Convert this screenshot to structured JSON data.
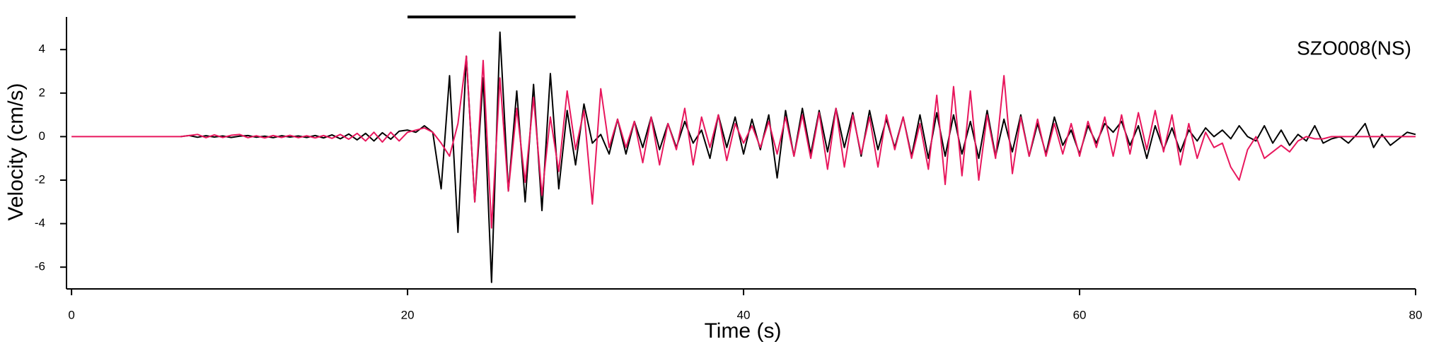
{
  "chart_data": {
    "type": "line",
    "xlabel": "Time (s)",
    "ylabel": "Velocity (cm/s)",
    "annotation": "SZO008(NS)",
    "span": [
      20,
      30
    ],
    "xlim": [
      -0.3,
      80
    ],
    "ylim": [
      -7,
      5.5
    ],
    "xticks": [
      0,
      20,
      40,
      60,
      80
    ],
    "yticks": [
      -6,
      -4,
      -2,
      0,
      2,
      4
    ],
    "x": [
      0,
      0.5,
      1,
      1.5,
      2,
      2.5,
      3,
      3.5,
      4,
      4.5,
      5,
      5.5,
      6,
      6.5,
      7,
      7.5,
      8,
      8.5,
      9,
      9.5,
      10,
      10.5,
      11,
      11.5,
      12,
      12.5,
      13,
      13.5,
      14,
      14.5,
      15,
      15.5,
      16,
      16.5,
      17,
      17.5,
      18,
      18.5,
      19,
      19.5,
      20,
      20.5,
      21,
      21.5,
      22,
      22.5,
      23,
      23.5,
      24,
      24.5,
      25,
      25.5,
      26,
      26.5,
      27,
      27.5,
      28,
      28.5,
      29,
      29.5,
      30,
      30.5,
      31,
      31.5,
      32,
      32.5,
      33,
      33.5,
      34,
      34.5,
      35,
      35.5,
      36,
      36.5,
      37,
      37.5,
      38,
      38.5,
      39,
      39.5,
      40,
      40.5,
      41,
      41.5,
      42,
      42.5,
      43,
      43.5,
      44,
      44.5,
      45,
      45.5,
      46,
      46.5,
      47,
      47.5,
      48,
      48.5,
      49,
      49.5,
      50,
      50.5,
      51,
      51.5,
      52,
      52.5,
      53,
      53.5,
      54,
      54.5,
      55,
      55.5,
      56,
      56.5,
      57,
      57.5,
      58,
      58.5,
      59,
      59.5,
      60,
      60.5,
      61,
      61.5,
      62,
      62.5,
      63,
      63.5,
      64,
      64.5,
      65,
      65.5,
      66,
      66.5,
      67,
      67.5,
      68,
      68.5,
      69,
      69.5,
      70,
      70.5,
      71,
      71.5,
      72,
      72.5,
      73,
      73.5,
      74,
      74.5,
      75,
      75.5,
      76,
      76.5,
      77,
      77.5,
      78,
      78.5,
      79,
      79.5,
      80
    ],
    "series": [
      {
        "color": "#000000",
        "values": [
          null,
          null,
          null,
          null,
          null,
          null,
          null,
          null,
          null,
          null,
          null,
          null,
          null,
          0,
          0.05,
          -0.03,
          0.04,
          -0.02,
          0.03,
          -0.04,
          0.02,
          0.05,
          -0.03,
          0.02,
          -0.05,
          0.04,
          -0.02,
          0.03,
          -0.04,
          0.05,
          -0.06,
          0.08,
          -0.1,
          0.12,
          -0.15,
          0.15,
          -0.2,
          0.18,
          -0.12,
          0.25,
          0.3,
          0.2,
          0.5,
          0.2,
          -2.4,
          2.8,
          -4.4,
          3.7,
          -3.0,
          2.7,
          -6.7,
          4.8,
          -2.5,
          2.1,
          -3.0,
          2.4,
          -3.4,
          2.9,
          -2.4,
          1.2,
          -1.3,
          1.5,
          -0.3,
          0.1,
          -0.8,
          0.8,
          -0.8,
          0.7,
          -0.5,
          0.9,
          -0.6,
          0.6,
          -0.5,
          0.7,
          -0.3,
          0.3,
          -1.0,
          1.0,
          -0.5,
          0.9,
          -0.8,
          0.8,
          -0.6,
          1.0,
          -1.9,
          1.2,
          -0.9,
          1.3,
          -0.8,
          1.2,
          -0.7,
          1.3,
          -0.5,
          1.1,
          -0.9,
          1.2,
          -0.6,
          0.8,
          -0.5,
          0.9,
          -0.9,
          1.0,
          -1.0,
          1.1,
          -0.9,
          1.0,
          -0.8,
          0.7,
          -1.0,
          1.2,
          -0.9,
          0.8,
          -0.7,
          1.0,
          -0.9,
          0.6,
          -0.8,
          0.9,
          -0.4,
          0.3,
          -0.8,
          0.5,
          -0.3,
          0.6,
          0.2,
          0.7,
          -0.4,
          0.5,
          -1.0,
          0.5,
          -0.6,
          0.4,
          -0.7,
          0.3,
          -0.2,
          0.4,
          0.0,
          0.3,
          -0.1,
          0.5,
          0.0,
          -0.2,
          0.5,
          -0.3,
          0.3,
          -0.4,
          0.1,
          -0.2,
          0.5,
          -0.3,
          -0.1,
          0.0,
          -0.3,
          0.1,
          0.6,
          -0.5,
          0.1,
          -0.4,
          -0.1,
          0.2,
          0.1
        ]
      },
      {
        "color": "#e8175d",
        "values": [
          0,
          0,
          0,
          0,
          0,
          0,
          0,
          0,
          0,
          0,
          0,
          0,
          0,
          0,
          0.05,
          0.1,
          -0.05,
          0.08,
          -0.04,
          0.06,
          0.1,
          -0.05,
          0.04,
          -0.06,
          0.05,
          -0.04,
          0.06,
          -0.05,
          0.04,
          -0.06,
          0.05,
          -0.08,
          0.1,
          -0.12,
          0.15,
          -0.2,
          0.2,
          -0.25,
          0.2,
          -0.2,
          0.2,
          0.3,
          0.4,
          0.2,
          -0.3,
          -0.9,
          0.6,
          3.7,
          -3.0,
          3.5,
          -4.2,
          2.7,
          -2.5,
          1.3,
          -2.1,
          1.8,
          -2.7,
          0.9,
          -1.6,
          2.1,
          -0.6,
          1.2,
          -3.1,
          2.2,
          -0.5,
          0.8,
          -0.5,
          0.7,
          -1.2,
          0.9,
          -1.3,
          0.6,
          -0.6,
          1.3,
          -1.3,
          0.9,
          -0.5,
          1.0,
          -1.1,
          0.6,
          -0.3,
          0.5,
          -0.5,
          0.7,
          -0.8,
          0.9,
          -0.9,
          1.0,
          -1.0,
          1.1,
          -1.5,
          1.3,
          -1.4,
          1.0,
          -0.8,
          0.9,
          -1.4,
          1.0,
          -0.6,
          0.9,
          -1.0,
          0.6,
          -1.5,
          1.9,
          -2.2,
          2.3,
          -1.8,
          2.1,
          -2.0,
          1.0,
          -1.0,
          2.8,
          -1.7,
          0.9,
          -0.9,
          0.8,
          -0.9,
          0.6,
          -0.8,
          0.6,
          -0.9,
          0.7,
          -0.5,
          0.9,
          -0.9,
          1.0,
          -0.8,
          1.1,
          -0.6,
          1.2,
          -0.7,
          1.0,
          -1.3,
          0.6,
          -1.0,
          0.2,
          -0.5,
          -0.3,
          -1.4,
          -2.0,
          -0.6,
          0.0,
          -1.0,
          -0.7,
          -0.4,
          -0.7,
          -0.2,
          0.0,
          -0.1,
          -0.1,
          0,
          0,
          0,
          0,
          0,
          0,
          0,
          0,
          0,
          0,
          0
        ]
      }
    ]
  }
}
